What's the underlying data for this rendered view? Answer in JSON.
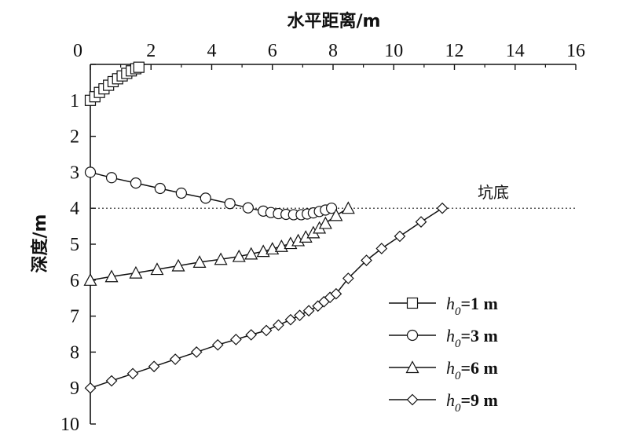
{
  "chart_data": {
    "type": "line",
    "xlabel": "水平距离/m",
    "ylabel": "深度/m",
    "xlim": [
      0,
      16
    ],
    "ylim": [
      0,
      10
    ],
    "x_axis_position": "top",
    "y_axis_inverted": true,
    "grid": false,
    "legend_position": "bottom-right",
    "x_ticks": [
      "0",
      "2",
      "4",
      "6",
      "8",
      "10",
      "12",
      "14",
      "16"
    ],
    "y_ticks": [
      "0",
      "1",
      "2",
      "3",
      "4",
      "5",
      "6",
      "7",
      "8",
      "9",
      "10"
    ],
    "reference_line": {
      "label": "坑底",
      "depth": 4,
      "style": "dotted"
    },
    "series": [
      {
        "name_prefix": "h",
        "name_sub": "0",
        "name_suffix": "=1 m",
        "marker": "square",
        "points": [
          [
            0.0,
            1.0
          ],
          [
            0.15,
            0.9
          ],
          [
            0.3,
            0.78
          ],
          [
            0.45,
            0.68
          ],
          [
            0.6,
            0.58
          ],
          [
            0.75,
            0.48
          ],
          [
            0.9,
            0.4
          ],
          [
            1.05,
            0.32
          ],
          [
            1.2,
            0.25
          ],
          [
            1.35,
            0.18
          ],
          [
            1.5,
            0.12
          ],
          [
            1.6,
            0.08
          ]
        ]
      },
      {
        "name_prefix": "h",
        "name_sub": "0",
        "name_suffix": "=3 m",
        "marker": "circle",
        "points": [
          [
            0.0,
            3.0
          ],
          [
            0.7,
            3.15
          ],
          [
            1.5,
            3.3
          ],
          [
            2.3,
            3.45
          ],
          [
            3.0,
            3.58
          ],
          [
            3.8,
            3.72
          ],
          [
            4.6,
            3.87
          ],
          [
            5.2,
            3.99
          ],
          [
            5.7,
            4.08
          ],
          [
            5.95,
            4.12
          ],
          [
            6.2,
            4.15
          ],
          [
            6.45,
            4.17
          ],
          [
            6.7,
            4.18
          ],
          [
            6.95,
            4.18
          ],
          [
            7.15,
            4.16
          ],
          [
            7.35,
            4.13
          ],
          [
            7.55,
            4.09
          ],
          [
            7.75,
            4.05
          ],
          [
            7.95,
            4.0
          ]
        ]
      },
      {
        "name_prefix": "h",
        "name_sub": "0",
        "name_suffix": "=6 m",
        "marker": "triangle",
        "points": [
          [
            0.0,
            6.0
          ],
          [
            0.7,
            5.9
          ],
          [
            1.5,
            5.8
          ],
          [
            2.2,
            5.7
          ],
          [
            2.9,
            5.6
          ],
          [
            3.6,
            5.5
          ],
          [
            4.3,
            5.42
          ],
          [
            4.9,
            5.34
          ],
          [
            5.3,
            5.27
          ],
          [
            5.7,
            5.2
          ],
          [
            6.0,
            5.13
          ],
          [
            6.3,
            5.06
          ],
          [
            6.6,
            4.98
          ],
          [
            6.85,
            4.9
          ],
          [
            7.1,
            4.8
          ],
          [
            7.35,
            4.68
          ],
          [
            7.55,
            4.55
          ],
          [
            7.75,
            4.42
          ],
          [
            8.1,
            4.2
          ],
          [
            8.5,
            4.0
          ]
        ]
      },
      {
        "name_prefix": "h",
        "name_sub": "0",
        "name_suffix": "=9 m",
        "marker": "diamond",
        "points": [
          [
            0.0,
            9.0
          ],
          [
            0.7,
            8.8
          ],
          [
            1.4,
            8.6
          ],
          [
            2.1,
            8.4
          ],
          [
            2.8,
            8.2
          ],
          [
            3.5,
            8.0
          ],
          [
            4.2,
            7.8
          ],
          [
            4.8,
            7.65
          ],
          [
            5.3,
            7.52
          ],
          [
            5.8,
            7.4
          ],
          [
            6.2,
            7.25
          ],
          [
            6.6,
            7.1
          ],
          [
            6.9,
            6.98
          ],
          [
            7.2,
            6.85
          ],
          [
            7.5,
            6.72
          ],
          [
            7.7,
            6.6
          ],
          [
            7.9,
            6.48
          ],
          [
            8.1,
            6.38
          ],
          [
            8.5,
            5.95
          ],
          [
            9.1,
            5.45
          ],
          [
            9.6,
            5.12
          ],
          [
            10.2,
            4.78
          ],
          [
            10.9,
            4.38
          ],
          [
            11.6,
            4.0
          ]
        ]
      }
    ]
  }
}
